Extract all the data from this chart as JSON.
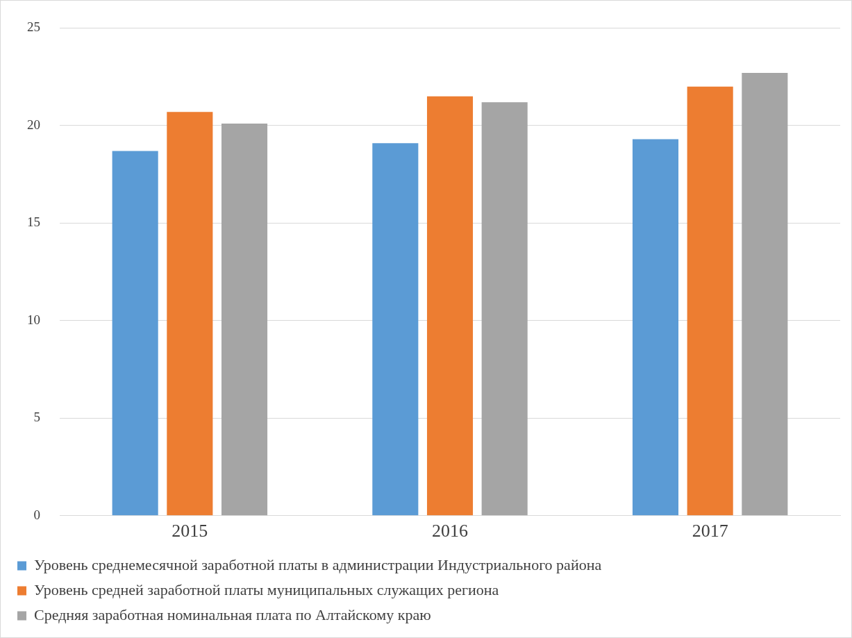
{
  "chart_data": {
    "type": "bar",
    "categories": [
      "2015",
      "2016",
      "2017"
    ],
    "series": [
      {
        "name": "Уровень среднемесячной заработной платы в администрации Индустриального района",
        "color": "#5b9bd5",
        "values": [
          18.7,
          19.1,
          19.3
        ]
      },
      {
        "name": "Уровень средней заработной платы муниципальных служащих региона",
        "color": "#ed7d31",
        "values": [
          20.7,
          21.5,
          22.0
        ]
      },
      {
        "name": "Средняя заработная номинальная плата по Алтайскому краю",
        "color": "#a5a5a5",
        "values": [
          20.1,
          21.2,
          22.7
        ]
      }
    ],
    "ylim": [
      0,
      25
    ],
    "yticks": [
      0,
      5,
      10,
      15,
      20,
      25
    ],
    "grid": "y",
    "legend": "bottom"
  }
}
